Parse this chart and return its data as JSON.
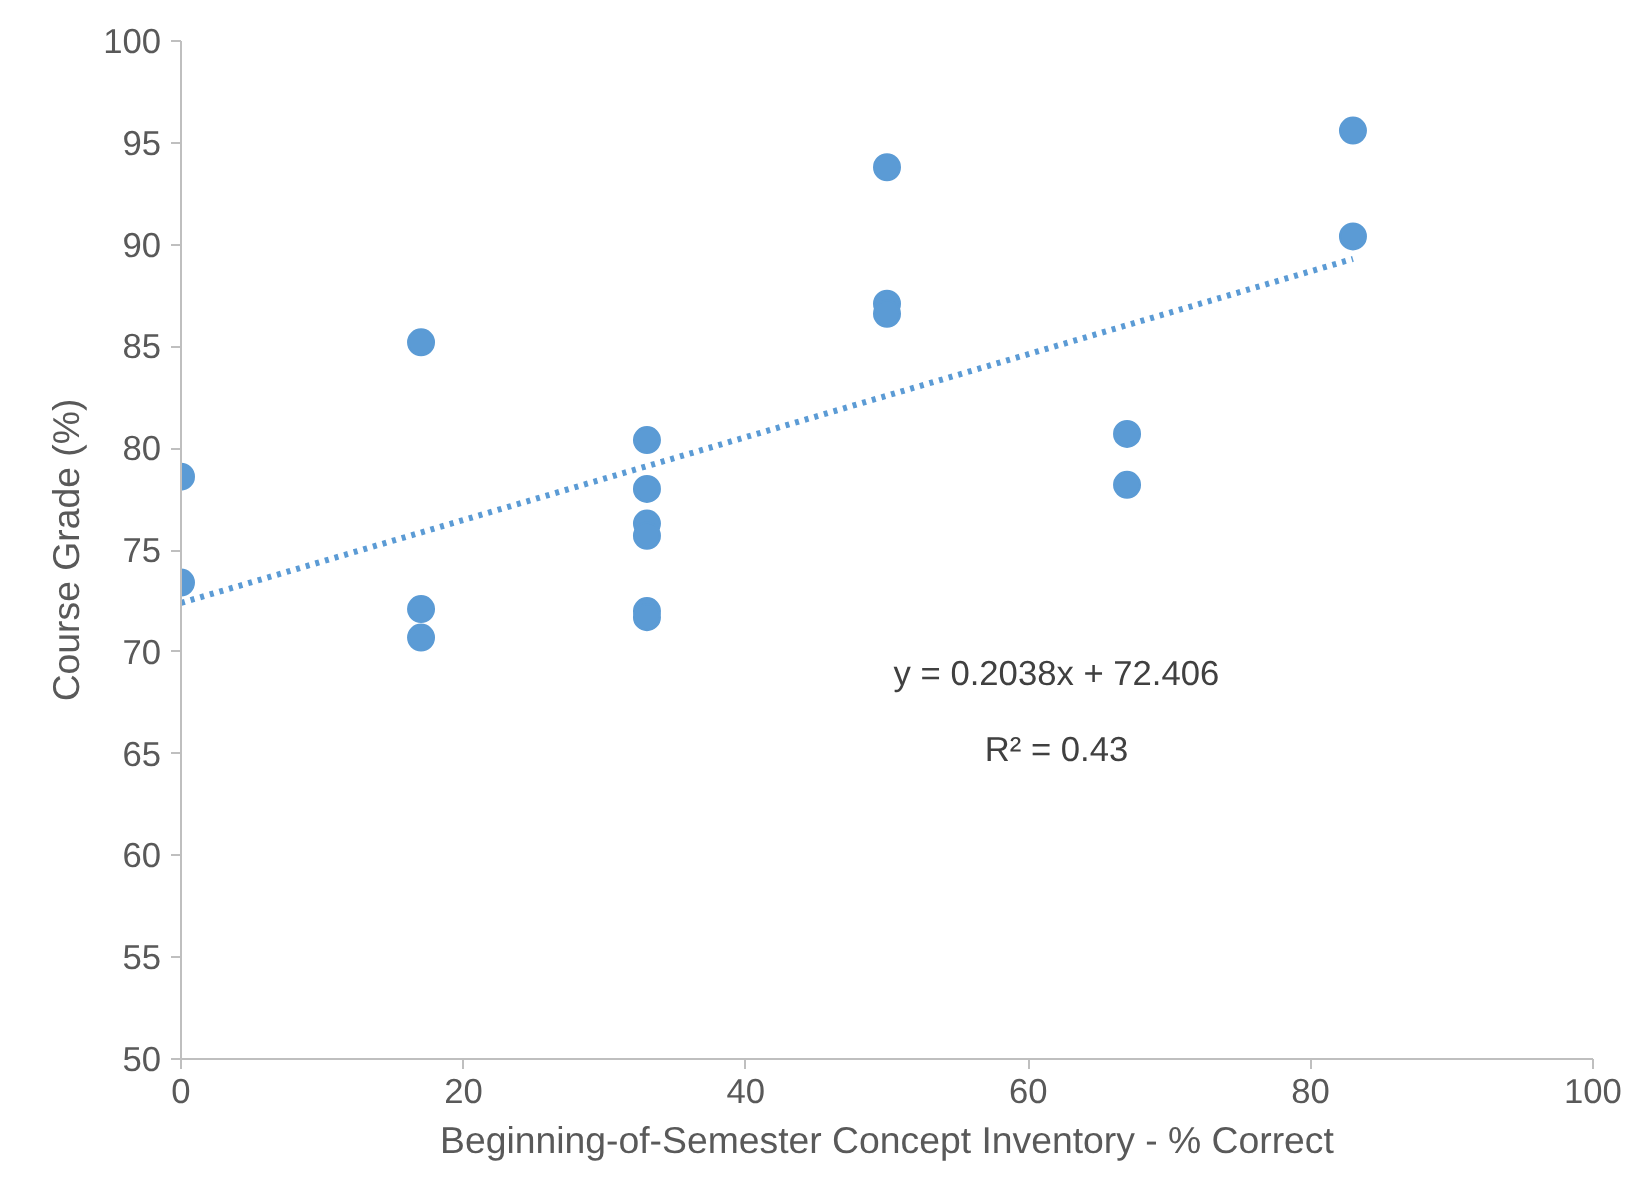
{
  "chart_data": {
    "type": "scatter",
    "xlabel": "Beginning-of-Semester Concept Inventory - % Correct",
    "ylabel": "Course Grade (%)",
    "xlim": [
      0,
      100
    ],
    "ylim": [
      50,
      100
    ],
    "xticks": [
      0,
      20,
      40,
      60,
      80,
      100
    ],
    "yticks": [
      50,
      55,
      60,
      65,
      70,
      75,
      80,
      85,
      90,
      95,
      100
    ],
    "grid": false,
    "marker": "circle",
    "series": [
      {
        "color": "#5b9bd5",
        "x": [
          0,
          0,
          17,
          17,
          17,
          33,
          33,
          33,
          33,
          33,
          33,
          50,
          50,
          50,
          67,
          67,
          83,
          83
        ],
        "values": [
          78.6,
          73.4,
          85.2,
          72.1,
          70.7,
          80.4,
          78.0,
          76.3,
          75.7,
          72.0,
          71.7,
          93.8,
          87.1,
          86.6,
          80.7,
          78.2,
          95.6,
          90.4
        ]
      },
      {
        "type": "line",
        "color": "#5b9bd5",
        "line_style": "dotted",
        "marker": "none",
        "x": [
          0,
          83
        ],
        "values": [
          72.4,
          89.3
        ]
      }
    ],
    "annotations": [
      "y = 0.2038x + 72.406",
      "R² = 0.43"
    ]
  }
}
